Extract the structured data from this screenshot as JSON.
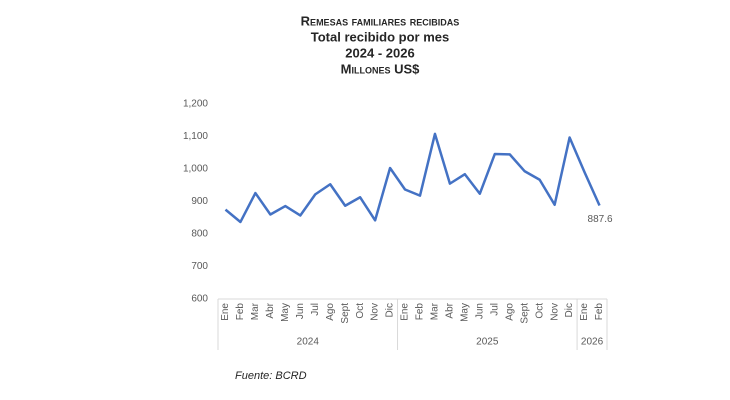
{
  "chart_data": {
    "type": "line",
    "title": "Remesas familiares recibidas",
    "subtitle": [
      "Total recibido por mes",
      "2024 - 2026",
      "Millones US$"
    ],
    "groups": [
      {
        "label": "2024",
        "categories": [
          "Ene",
          "Feb",
          "Mar",
          "Abr",
          "May",
          "Jun",
          "Jul",
          "Ago",
          "Sept",
          "Oct",
          "Nov",
          "Dic"
        ]
      },
      {
        "label": "2025",
        "categories": [
          "Ene",
          "Feb",
          "Mar",
          "Abr",
          "May",
          "Jun",
          "Jul",
          "Ago",
          "Sept",
          "Oct",
          "Nov",
          "Dic"
        ]
      },
      {
        "label": "2026",
        "categories": [
          "Ene",
          "Feb"
        ]
      }
    ],
    "series": [
      {
        "name": "Remesas",
        "color": "#4472c4",
        "values": [
          875,
          837,
          926,
          860,
          886,
          857,
          922,
          953,
          887,
          913,
          842,
          1003,
          937,
          918,
          1108,
          955,
          984,
          924,
          1046,
          1045,
          993,
          967,
          890,
          1097,
          990,
          887.6
        ]
      }
    ],
    "ylim": [
      600,
      1200
    ],
    "yticks": [
      600,
      700,
      800,
      900,
      {
        "value": 1000,
        "label": "1,000"
      },
      {
        "value": 1100,
        "label": "1,100"
      },
      {
        "value": 1200,
        "label": "1,200"
      }
    ],
    "grid": false,
    "source": "Fuente: BCRD"
  }
}
